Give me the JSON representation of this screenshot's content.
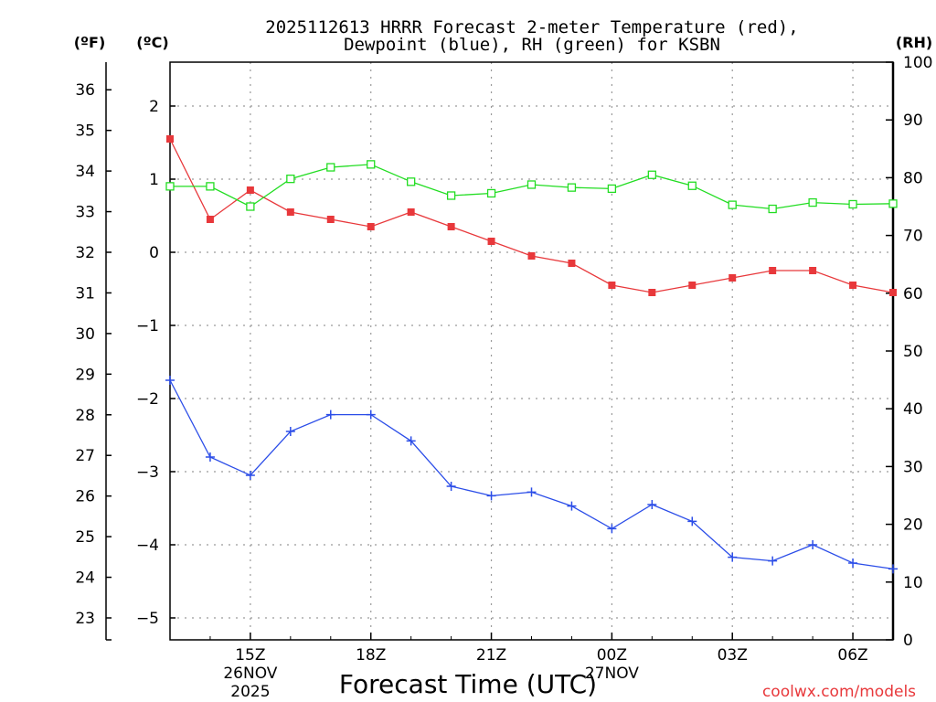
{
  "chart_data": {
    "type": "line",
    "title_line1": "2025112613 HRRR Forecast 2-meter Temperature (red),",
    "title_line2": "Dewpoint (blue), RH (green) for KSBN",
    "xlabel": "Forecast Time (UTC)",
    "watermark": "coolwx.com/models",
    "colors": {
      "temperature": "#e8383b",
      "dewpoint": "#2b4de8",
      "rh": "#22dd22"
    },
    "units": {
      "f": "(ºF)",
      "c": "(ºC)",
      "rh": "(RH)"
    },
    "x_hours": [
      13,
      14,
      15,
      16,
      17,
      18,
      19,
      20,
      21,
      22,
      23,
      24,
      25,
      26,
      27,
      28,
      29,
      30,
      31
    ],
    "x_ticks": [
      {
        "hour": 15,
        "label": "15Z",
        "date": "26NOV",
        "year": "2025"
      },
      {
        "hour": 18,
        "label": "18Z"
      },
      {
        "hour": 21,
        "label": "21Z"
      },
      {
        "hour": 24,
        "label": "00Z",
        "date": "27NOV"
      },
      {
        "hour": 27,
        "label": "03Z"
      },
      {
        "hour": 30,
        "label": "06Z"
      }
    ],
    "xlim": [
      13,
      31
    ],
    "c_axis": {
      "lim": [
        -5.3,
        2.6
      ],
      "ticks": [
        "2",
        "1",
        "0",
        "−1",
        "−2",
        "−3",
        "−4",
        "−5"
      ],
      "tick_values": [
        2,
        1,
        0,
        -1,
        -2,
        -3,
        -4,
        -5
      ]
    },
    "f_axis": {
      "ticks": [
        "36",
        "35",
        "34",
        "33",
        "32",
        "31",
        "30",
        "29",
        "28",
        "27",
        "26",
        "25",
        "24",
        "23"
      ],
      "tick_values": [
        36,
        35,
        34,
        33,
        32,
        31,
        30,
        29,
        28,
        27,
        26,
        25,
        24,
        23
      ]
    },
    "rh_axis": {
      "lim": [
        0,
        100
      ],
      "ticks": [
        "100",
        "90",
        "80",
        "70",
        "60",
        "50",
        "40",
        "30",
        "20",
        "10",
        "0"
      ],
      "tick_values": [
        100,
        90,
        80,
        70,
        60,
        50,
        40,
        30,
        20,
        10,
        0
      ]
    },
    "series": [
      {
        "name": "Temperature",
        "unit": "C",
        "marker": "filled-square",
        "values": [
          1.55,
          0.45,
          0.85,
          0.55,
          0.45,
          0.35,
          0.55,
          0.35,
          0.15,
          -0.05,
          -0.15,
          -0.45,
          -0.55,
          -0.45,
          -0.35,
          -0.25,
          -0.25,
          -0.45,
          -0.55
        ]
      },
      {
        "name": "Dewpoint",
        "unit": "C",
        "marker": "plus",
        "values": [
          -1.75,
          -2.8,
          -3.05,
          -2.45,
          -2.22,
          -2.22,
          -2.58,
          -3.2,
          -3.33,
          -3.28,
          -3.47,
          -3.78,
          -3.45,
          -3.68,
          -4.17,
          -4.22,
          -4.0,
          -4.25,
          -4.33
        ]
      },
      {
        "name": "RH",
        "unit": "%",
        "marker": "open-square",
        "values": [
          78.5,
          78.5,
          75.0,
          79.8,
          81.8,
          82.3,
          79.3,
          76.9,
          77.3,
          78.8,
          78.3,
          78.1,
          80.5,
          78.6,
          75.3,
          74.6,
          75.7,
          75.4,
          75.5
        ]
      }
    ]
  }
}
